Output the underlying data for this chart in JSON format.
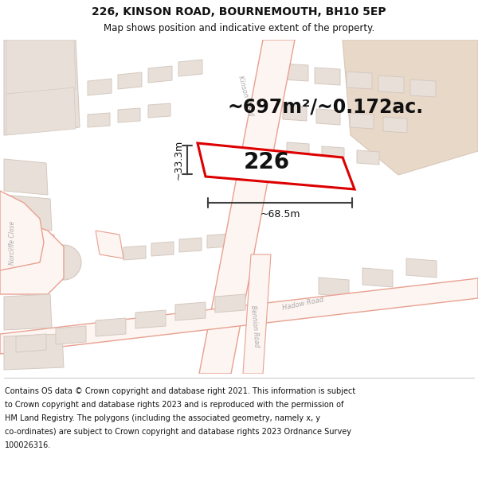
{
  "title_line1": "226, KINSON ROAD, BOURNEMOUTH, BH10 5EP",
  "title_line2": "Map shows position and indicative extent of the property.",
  "area_label": "~697m²/~0.172ac.",
  "plot_number": "226",
  "dim_width": "~68.5m",
  "dim_height": "~33.3m",
  "footer_lines": [
    "Contains OS data © Crown copyright and database right 2021. This information is subject",
    "to Crown copyright and database rights 2023 and is reproduced with the permission of",
    "HM Land Registry. The polygons (including the associated geometry, namely x, y",
    "co-ordinates) are subject to Crown copyright and database rights 2023 Ordnance Survey",
    "100026316."
  ],
  "map_bg": "#ffffff",
  "road_outline": "#e8a090",
  "road_fill": "#fdf5f2",
  "building_fill": "#e8e0d8",
  "building_outline": "#d4c8c0",
  "tan_area_fill": "#e8d8c8",
  "tan_area_outline": "#d8c8b8",
  "plot_outline_color": "#dd0000",
  "plot_fill": "#ffffff",
  "dim_line_color": "#404040",
  "text_color": "#111111",
  "road_label_color": "#aaaaaa",
  "fig_width": 6.0,
  "fig_height": 6.25,
  "title_fontsize": 10,
  "subtitle_fontsize": 8.5,
  "area_fontsize": 17,
  "plot_num_fontsize": 20,
  "dim_fontsize": 9,
  "footer_fontsize": 7.0,
  "road_label_fontsize": 6.0
}
